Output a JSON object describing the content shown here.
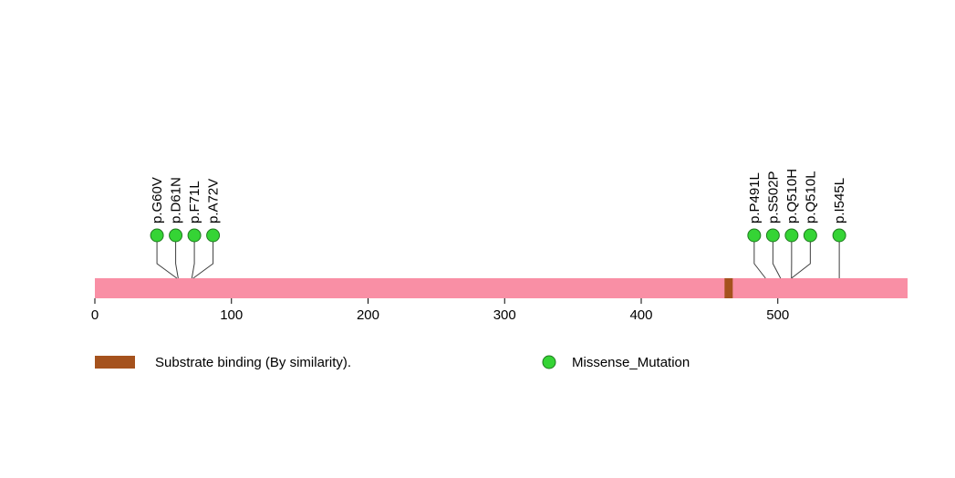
{
  "figure": {
    "background": "#ffffff"
  },
  "chart_data": {
    "type": "lollipop",
    "title": "",
    "xlabel": "",
    "ylabel": "",
    "axis": {
      "min": 0,
      "max": 595,
      "ticks": [
        0,
        100,
        200,
        300,
        400,
        500
      ]
    },
    "protein": {
      "start": 0,
      "end": 595,
      "color": "#f98fa5"
    },
    "domains": [
      {
        "label": "Substrate binding (By similarity).",
        "start": 461,
        "end": 467,
        "color": "#a5521d"
      }
    ],
    "mutation_style": {
      "fill": "#35d435",
      "stroke": "#1f7a1f",
      "stem_color": "#3f3f3f"
    },
    "mutations": [
      {
        "label": "p.G60V",
        "position": 60,
        "type": "Missense_Mutation"
      },
      {
        "label": "p.D61N",
        "position": 61,
        "type": "Missense_Mutation"
      },
      {
        "label": "p.F71L",
        "position": 71,
        "type": "Missense_Mutation"
      },
      {
        "label": "p.A72V",
        "position": 72,
        "type": "Missense_Mutation"
      },
      {
        "label": "p.P491L",
        "position": 491,
        "type": "Missense_Mutation"
      },
      {
        "label": "p.S502P",
        "position": 502,
        "type": "Missense_Mutation"
      },
      {
        "label": "p.Q510H",
        "position": 510,
        "type": "Missense_Mutation"
      },
      {
        "label": "p.Q510L",
        "position": 510,
        "type": "Missense_Mutation"
      },
      {
        "label": "p.I545L",
        "position": 545,
        "type": "Missense_Mutation"
      }
    ],
    "legend": [
      {
        "swatch": "rect",
        "color": "#a5521d",
        "label": "Substrate binding (By similarity)."
      },
      {
        "swatch": "circle",
        "color": "#35d435",
        "label": "Missense_Mutation"
      }
    ],
    "legend_position": "bottom",
    "grid": false
  }
}
